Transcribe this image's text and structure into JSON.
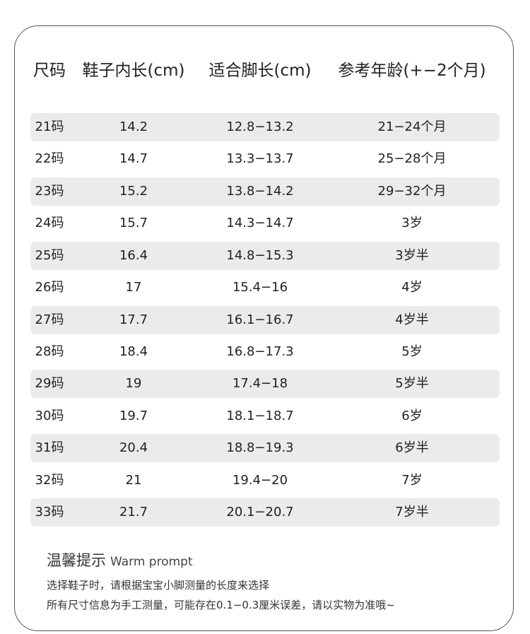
{
  "table": {
    "header": [
      "尺码",
      "鞋子内长(cm)",
      "适合脚长(cm)",
      "参考年龄(+−2个月)"
    ],
    "rows": [
      [
        "21码",
        "14.2",
        "12.8−13.2",
        "21−24个月"
      ],
      [
        "22码",
        "14.7",
        "13.3−13.7",
        "25−28个月"
      ],
      [
        "23码",
        "15.2",
        "13.8−14.2",
        "29−32个月"
      ],
      [
        "24码",
        "15.7",
        "14.3−14.7",
        "3岁"
      ],
      [
        "25码",
        "16.4",
        "14.8−15.3",
        "3岁半"
      ],
      [
        "26码",
        "17",
        "15.4−16",
        "4岁"
      ],
      [
        "27码",
        "17.7",
        "16.1−16.7",
        "4岁半"
      ],
      [
        "28码",
        "18.4",
        "16.8−17.3",
        "5岁"
      ],
      [
        "29码",
        "19",
        "17.4−18",
        "5岁半"
      ],
      [
        "30码",
        "19.7",
        "18.1−18.7",
        "6岁"
      ],
      [
        "31码",
        "20.4",
        "18.8−19.3",
        "6岁半"
      ],
      [
        "32码",
        "21",
        "19.4−20",
        "7岁"
      ],
      [
        "33码",
        "21.7",
        "20.1−20.7",
        "7岁半"
      ]
    ]
  },
  "tips": {
    "title": "温馨提示",
    "subtitle": "Warm prompt",
    "lines": [
      "选择鞋子时，请根据宝宝小脚测量的长度来选择",
      "所有尺寸信息为手工测量，可能存在0.1−0.3厘米误差，请以实物为准哦~"
    ]
  }
}
